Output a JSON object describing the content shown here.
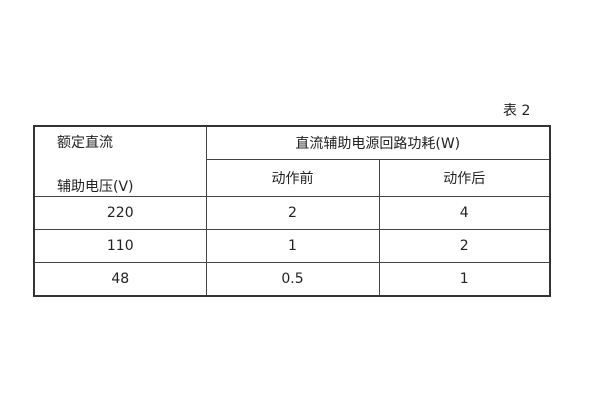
{
  "caption": "表 2",
  "table": {
    "stub_header": [
      "额定直流",
      "辅助电压(V)"
    ],
    "group_header": "直流辅助电源回路功耗(W)",
    "sub_headers": [
      "动作前",
      "动作后"
    ],
    "rows": [
      [
        "220",
        "2",
        "4"
      ],
      [
        "110",
        "1",
        "2"
      ],
      [
        "48",
        "0.5",
        "1"
      ]
    ]
  }
}
